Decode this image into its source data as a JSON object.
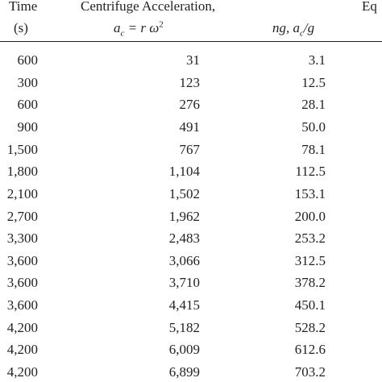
{
  "table": {
    "header": {
      "time": [
        "Time",
        "(s)"
      ],
      "accel": {
        "title": "Centrifuge Acceleration,",
        "formula": {
          "base": "a",
          "sub": "c",
          "rest": " = r ω",
          "sup": "2"
        }
      },
      "ng": {
        "pre": "ng, a",
        "sub": "c",
        "post": "/g"
      },
      "eq": "Eq"
    },
    "rows": [
      [
        "600",
        "31",
        "3.1"
      ],
      [
        "300",
        "123",
        "12.5"
      ],
      [
        "600",
        "276",
        "28.1"
      ],
      [
        "900",
        "491",
        "50.0"
      ],
      [
        "1,500",
        "767",
        "78.1"
      ],
      [
        "1,800",
        "1,104",
        "112.5"
      ],
      [
        "2,100",
        "1,502",
        "153.1"
      ],
      [
        "2,700",
        "1,962",
        "200.0"
      ],
      [
        "3,300",
        "2,483",
        "253.2"
      ],
      [
        "3,600",
        "3,066",
        "312.5"
      ],
      [
        "3,600",
        "3,710",
        "378.2"
      ],
      [
        "3,600",
        "4,415",
        "450.1"
      ],
      [
        "4,200",
        "5,182",
        "528.2"
      ],
      [
        "4,200",
        "6,009",
        "612.6"
      ],
      [
        "4,200",
        "6,899",
        "703.2"
      ]
    ]
  }
}
